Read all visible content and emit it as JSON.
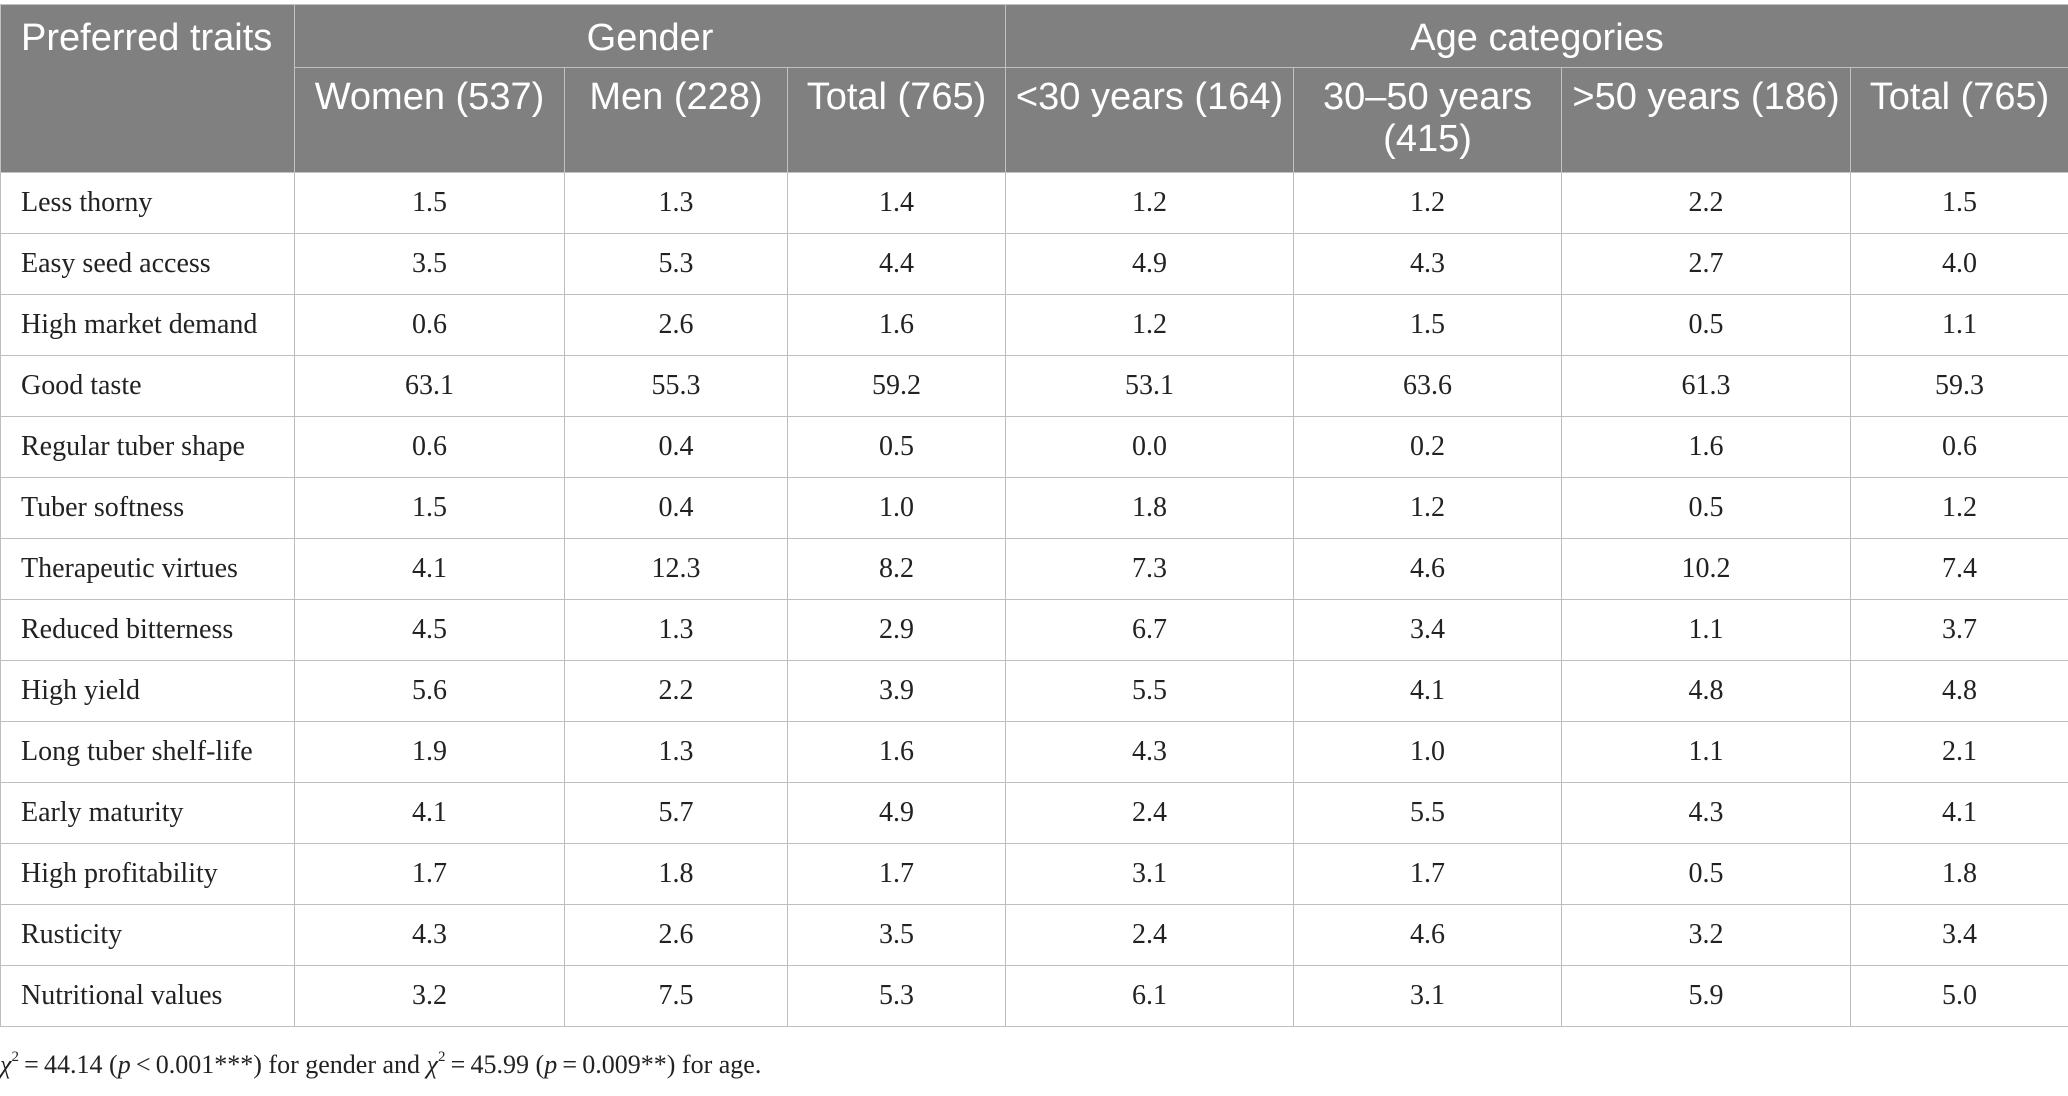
{
  "table": {
    "header": {
      "trait_label": "Preferred traits",
      "gender_label": "Gender",
      "age_label": "Age categories",
      "gender_columns": [
        "Women (537)",
        "Men (228)",
        "Total (765)"
      ],
      "age_columns": [
        "<30 years (164)",
        "30–50 years (415)",
        ">50 years (186)",
        "Total (765)"
      ]
    },
    "rows": [
      {
        "trait": "Less thorny",
        "values": [
          "1.5",
          "1.3",
          "1.4",
          "1.2",
          "1.2",
          "2.2",
          "1.5"
        ]
      },
      {
        "trait": "Easy seed access",
        "values": [
          "3.5",
          "5.3",
          "4.4",
          "4.9",
          "4.3",
          "2.7",
          "4.0"
        ]
      },
      {
        "trait": "High market demand",
        "values": [
          "0.6",
          "2.6",
          "1.6",
          "1.2",
          "1.5",
          "0.5",
          "1.1"
        ]
      },
      {
        "trait": "Good taste",
        "values": [
          "63.1",
          "55.3",
          "59.2",
          "53.1",
          "63.6",
          "61.3",
          "59.3"
        ]
      },
      {
        "trait": "Regular tuber shape",
        "values": [
          "0.6",
          "0.4",
          "0.5",
          "0.0",
          "0.2",
          "1.6",
          "0.6"
        ]
      },
      {
        "trait": "Tuber softness",
        "values": [
          "1.5",
          "0.4",
          "1.0",
          "1.8",
          "1.2",
          "0.5",
          "1.2"
        ]
      },
      {
        "trait": "Therapeutic virtues",
        "values": [
          "4.1",
          "12.3",
          "8.2",
          "7.3",
          "4.6",
          "10.2",
          "7.4"
        ]
      },
      {
        "trait": "Reduced bitterness",
        "values": [
          "4.5",
          "1.3",
          "2.9",
          "6.7",
          "3.4",
          "1.1",
          "3.7"
        ]
      },
      {
        "trait": "High yield",
        "values": [
          "5.6",
          "2.2",
          "3.9",
          "5.5",
          "4.1",
          "4.8",
          "4.8"
        ]
      },
      {
        "trait": "Long tuber shelf-life",
        "values": [
          "1.9",
          "1.3",
          "1.6",
          "4.3",
          "1.0",
          "1.1",
          "2.1"
        ]
      },
      {
        "trait": "Early maturity",
        "values": [
          "4.1",
          "5.7",
          "4.9",
          "2.4",
          "5.5",
          "4.3",
          "4.1"
        ]
      },
      {
        "trait": "High profitability",
        "values": [
          "1.7",
          "1.8",
          "1.7",
          "3.1",
          "1.7",
          "0.5",
          "1.8"
        ]
      },
      {
        "trait": "Rusticity",
        "values": [
          "4.3",
          "2.6",
          "3.5",
          "2.4",
          "4.6",
          "3.2",
          "3.4"
        ]
      },
      {
        "trait": "Nutritional values",
        "values": [
          "3.2",
          "7.5",
          "5.3",
          "6.1",
          "3.1",
          "5.9",
          "5.0"
        ]
      }
    ]
  },
  "footnote": {
    "chi_symbol": "χ",
    "superscript": "2",
    "gender_chi": " = 44.14 (",
    "p_symbol": "p",
    "gender_p": " < 0.001***) for gender and ",
    "age_chi": " = 45.99 (",
    "age_p": " = 0.009**) for age."
  },
  "colors": {
    "header_background": "#808080",
    "header_text": "#ffffff",
    "grid_line": "#bdbdbd",
    "body_text": "#222222"
  }
}
